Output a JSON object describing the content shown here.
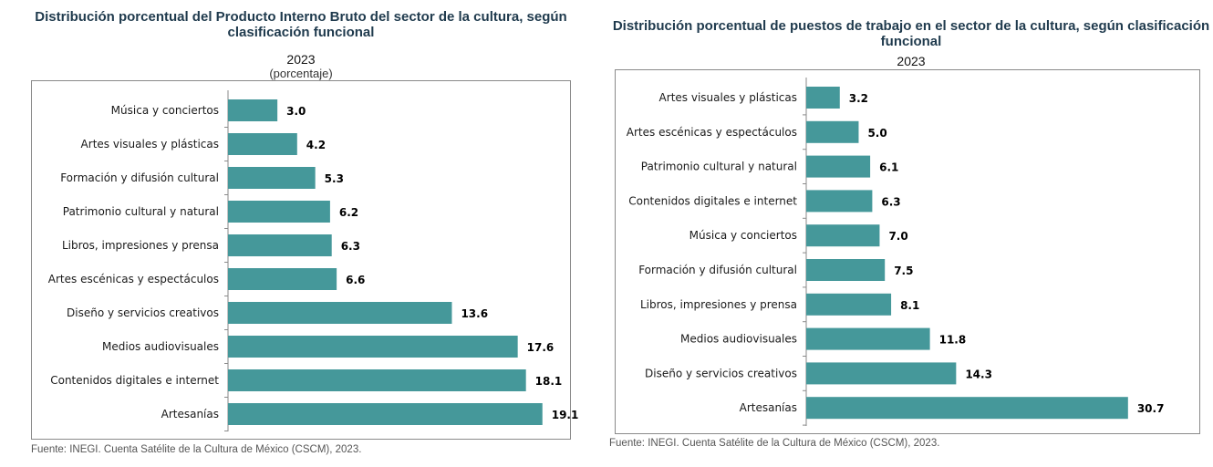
{
  "colors": {
    "bar": "#45989a",
    "axis": "#8a8a8a",
    "title": "#1f3a4d"
  },
  "chart_data": [
    {
      "type": "bar",
      "orientation": "horizontal",
      "title": "Distribución porcentual del Producto Interno Bruto del sector de la cultura, según clasificación funcional",
      "year": "2023",
      "unit": "(porcentaje)",
      "categories": [
        "Música y conciertos",
        "Artes visuales y plásticas",
        "Formación y difusión cultural",
        "Patrimonio cultural y natural",
        "Libros, impresiones y prensa",
        "Artes escénicas y espectáculos",
        "Diseño y servicios creativos",
        "Medios audiovisuales",
        "Contenidos digitales e internet",
        "Artesanías"
      ],
      "values": [
        3.0,
        4.2,
        5.3,
        6.2,
        6.3,
        6.6,
        13.6,
        17.6,
        18.1,
        19.1
      ],
      "value_labels": [
        "3.0",
        "4.2",
        "5.3",
        "6.2",
        "6.3",
        "6.6",
        "13.6",
        "17.6",
        "18.1",
        "19.1"
      ],
      "xlim": [
        0,
        20.5
      ],
      "grid": false,
      "source": "Fuente: INEGI. Cuenta Satélite de la Cultura de México (CSCM), 2023."
    },
    {
      "type": "bar",
      "orientation": "horizontal",
      "title": "Distribución porcentual de puestos de trabajo en el sector de la cultura, según clasificación funcional",
      "year": "2023",
      "categories": [
        "Artes visuales y plásticas",
        "Artes escénicas y espectáculos",
        "Patrimonio cultural y natural",
        "Contenidos digitales e internet",
        "Música y conciertos",
        "Formación y difusión cultural",
        "Libros, impresiones y prensa",
        "Medios audiovisuales",
        "Diseño y servicios creativos",
        "Artesanías"
      ],
      "values": [
        3.2,
        5.0,
        6.1,
        6.3,
        7.0,
        7.5,
        8.1,
        11.8,
        14.3,
        30.7
      ],
      "value_labels": [
        "3.2",
        "5.0",
        "6.1",
        "6.3",
        "7.0",
        "7.5",
        "8.1",
        "11.8",
        "14.3",
        "30.7"
      ],
      "xlim": [
        0,
        33.5
      ],
      "grid": false,
      "source": "Fuente: INEGI. Cuenta Satélite de la Cultura de México (CSCM), 2023."
    }
  ]
}
